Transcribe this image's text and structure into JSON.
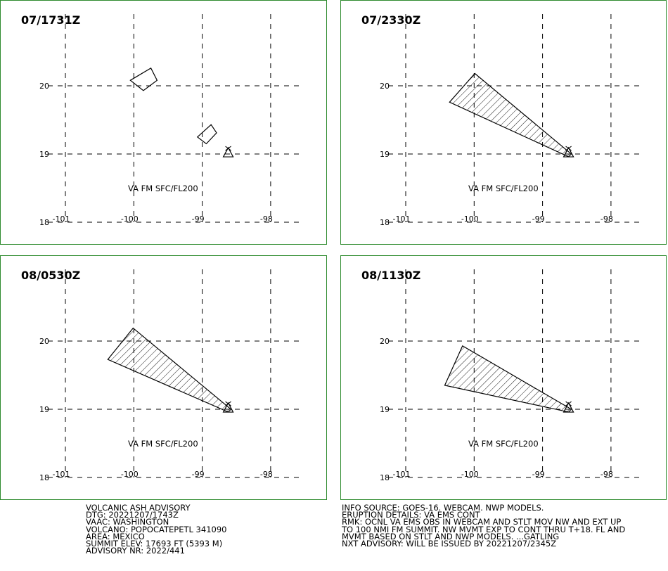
{
  "chart_data": {
    "type": "map",
    "label_color": "#000000",
    "frame_color": "#2e8b2e",
    "hatch_color": "#000000",
    "lat_ticks": [
      18,
      19,
      20
    ],
    "lat_labels": [
      "18",
      "19",
      "20"
    ],
    "lon_ticks": [
      -101,
      -100,
      -99,
      -98
    ],
    "lon_labels": [
      "-101",
      "-100",
      "-99",
      "-98"
    ],
    "xlim": [
      -101,
      -97.5
    ],
    "ylim": [
      18,
      21
    ],
    "volcano_location": [
      -98.62,
      19.02
    ],
    "volcano_symbol": "triangle",
    "panels": [
      {
        "time_label": "07/1731Z",
        "level_label": "VA FM SFC/FL200",
        "polygons": [
          {
            "fill": "none",
            "points": [
              [
                -100.05,
                20.08
              ],
              [
                -99.75,
                20.26
              ],
              [
                -99.66,
                20.08
              ],
              [
                -99.86,
                19.93
              ]
            ]
          },
          {
            "fill": "none",
            "points": [
              [
                -99.07,
                19.25
              ],
              [
                -98.87,
                19.43
              ],
              [
                -98.79,
                19.31
              ],
              [
                -98.94,
                19.15
              ]
            ]
          }
        ]
      },
      {
        "time_label": "07/2330Z",
        "level_label": "VA FM SFC/FL200",
        "polygons": [
          {
            "fill": "hatch",
            "points": [
              [
                -100.36,
                19.76
              ],
              [
                -99.99,
                20.18
              ],
              [
                -98.58,
                19.0
              ],
              [
                -98.62,
                18.96
              ]
            ]
          }
        ]
      },
      {
        "time_label": "08/0530Z",
        "level_label": "VA FM SFC/FL200",
        "polygons": [
          {
            "fill": "hatch",
            "points": [
              [
                -100.38,
                19.73
              ],
              [
                -100.01,
                20.19
              ],
              [
                -98.58,
                19.0
              ],
              [
                -98.62,
                18.96
              ]
            ]
          }
        ]
      },
      {
        "time_label": "08/1130Z",
        "level_label": "VA FM SFC/FL200",
        "polygons": [
          {
            "fill": "hatch",
            "points": [
              [
                -100.43,
                19.35
              ],
              [
                -100.17,
                19.93
              ],
              [
                -98.58,
                19.0
              ],
              [
                -98.62,
                18.96
              ]
            ]
          }
        ]
      }
    ]
  },
  "advisory": {
    "left_lines": [
      "VOLCANIC ASH ADVISORY",
      "DTG: 20221207/1743Z",
      "VAAC: WASHINGTON",
      "VOLCANO: POPOCATEPETL 341090",
      "AREA: MEXICO",
      "SUMMIT ELEV: 17693 FT (5393 M)",
      "ADVISORY NR: 2022/441"
    ],
    "right_lines": [
      "INFO SOURCE: GOES-16. WEBCAM. NWP MODELS.",
      "ERUPTION DETAILS: VA EMS CONT",
      "RMK: OCNL VA EMS OBS IN WEBCAM AND STLT MOV NW AND EXT UP",
      "TO 100 NMI FM SUMMIT. NW MVMT EXP TO CONT THRU T+18. FL AND",
      "MVMT BASED ON STLT AND NWP MODELS. ...GATLING",
      "NXT ADVISORY: WILL BE ISSUED BY 20221207/2345Z"
    ]
  }
}
